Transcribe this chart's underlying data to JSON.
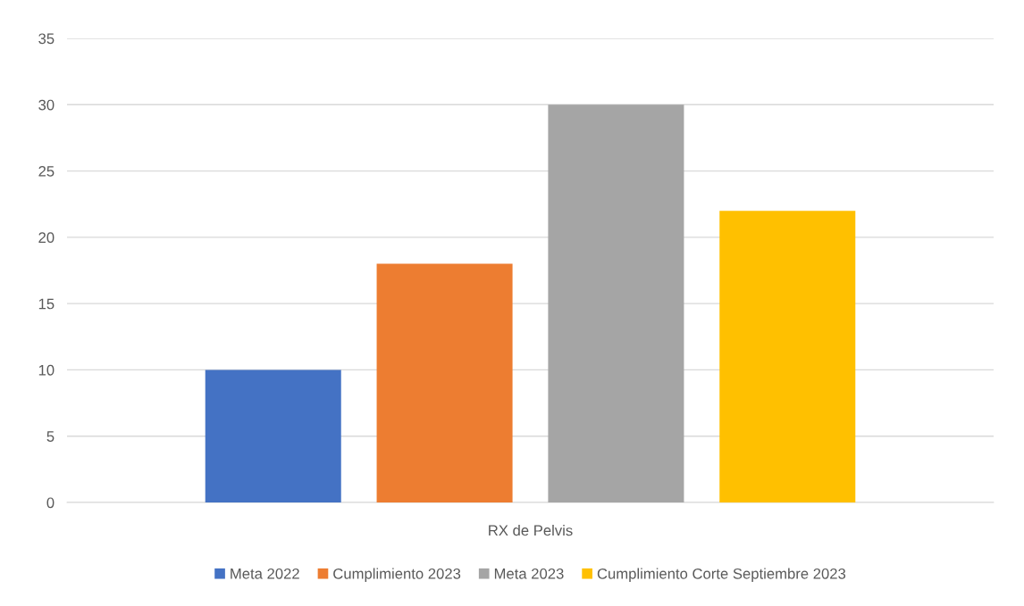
{
  "chart_data": {
    "type": "bar",
    "categories": [
      "RX de Pelvis"
    ],
    "series": [
      {
        "name": "Meta 2022",
        "color": "#4472c4",
        "values": [
          10
        ]
      },
      {
        "name": "Cumplimiento 2023",
        "color": "#ed7d31",
        "values": [
          18
        ]
      },
      {
        "name": "Meta 2023",
        "color": "#a5a5a5",
        "values": [
          30
        ]
      },
      {
        "name": "Cumplimiento Corte Septiembre 2023",
        "color": "#ffc000",
        "values": [
          22
        ]
      }
    ],
    "ylim": [
      0,
      35
    ],
    "yticks": [
      0,
      5,
      10,
      15,
      20,
      25,
      30,
      35
    ],
    "grid": "y",
    "legend": "bottom"
  }
}
